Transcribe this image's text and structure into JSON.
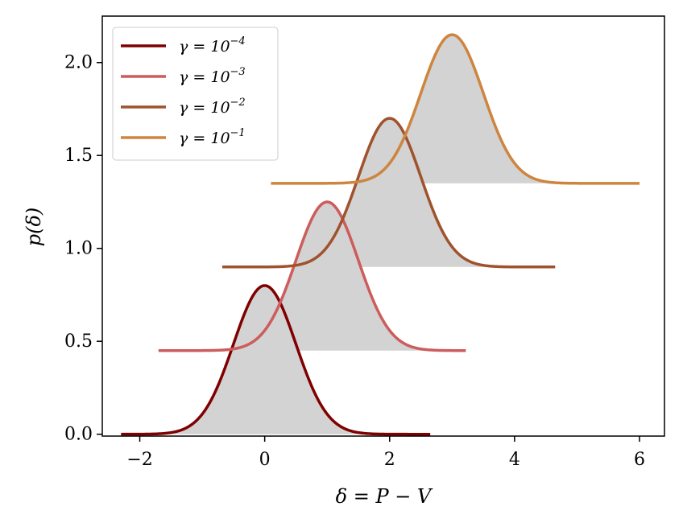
{
  "chart_data": {
    "type": "line",
    "xlabel": "δ = P − V",
    "ylabel": "p(δ)",
    "xlim": [
      -2.6,
      6.4
    ],
    "ylim": [
      -0.01,
      2.25
    ],
    "x_ticks": [
      -2,
      0,
      2,
      4,
      6
    ],
    "x_tick_labels": [
      "−2",
      "0",
      "2",
      "4",
      "6"
    ],
    "y_ticks": [
      0.0,
      0.5,
      1.0,
      1.5,
      2.0
    ],
    "y_tick_labels": [
      "0.0",
      "0.5",
      "1.0",
      "1.5",
      "2.0"
    ],
    "grid": false,
    "legend_position": "top-left",
    "fill_color": "#d3d3d3",
    "series": [
      {
        "name": "γ = 10^−4",
        "label_base": "γ = 10",
        "label_exp": "−4",
        "mean": 0,
        "peak_height": 0.8,
        "sd": 0.5,
        "baseline": 0.0,
        "x_range": [
          -2.3,
          2.65
        ],
        "color": "#800000"
      },
      {
        "name": "γ = 10^−3",
        "label_base": "γ = 10",
        "label_exp": "−3",
        "mean": 1,
        "peak_height": 0.8,
        "sd": 0.5,
        "baseline": 0.45,
        "x_range": [
          -1.7,
          3.22
        ],
        "color": "#cd5c5c"
      },
      {
        "name": "γ = 10^−2",
        "label_base": "γ = 10",
        "label_exp": "−2",
        "mean": 2,
        "peak_height": 0.8,
        "sd": 0.5,
        "baseline": 0.9,
        "x_range": [
          -0.68,
          4.65
        ],
        "color": "#a0522d"
      },
      {
        "name": "γ = 10^−1",
        "label_base": "γ = 10",
        "label_exp": "−1",
        "mean": 3,
        "peak_height": 0.8,
        "sd": 0.5,
        "baseline": 1.35,
        "x_range": [
          0.1,
          6.0
        ],
        "color": "#cd853f"
      }
    ]
  }
}
